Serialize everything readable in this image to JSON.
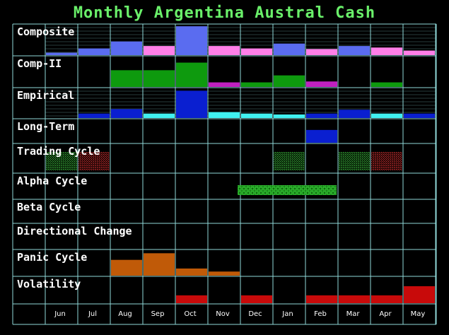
{
  "title": "Monthly Argentina Austral Cash",
  "colors": {
    "grid": "#8fd8d8",
    "composite": "#5a6cf0",
    "composite_alt": "#ff7fe8",
    "comp_ii": "#0e9a0e",
    "comp_ii_alt": "#c020c0",
    "empirical": "#0a1fd0",
    "empirical_alt": "#40f0f0",
    "long_term": "#0a1fd0",
    "trading_up": "#2e8a2e",
    "trading_down": "#a02020",
    "alpha": "#20c020",
    "panic": "#c05a08",
    "volatility": "#c80a0a"
  },
  "chart_data": {
    "type": "heatmap",
    "title": "Monthly Argentina Austral Cash",
    "months": [
      "Jun",
      "Jul",
      "Aug",
      "Sep",
      "Oct",
      "Nov",
      "Dec",
      "Jan",
      "Feb",
      "Mar",
      "Apr",
      "May"
    ],
    "rows": [
      {
        "name": "Composite",
        "kind": "bar",
        "scale": 1.0,
        "values": [
          0.08,
          0.22,
          0.45,
          0.3,
          0.95,
          0.3,
          0.22,
          0.38,
          0.2,
          0.3,
          0.25,
          0.15
        ],
        "color_keys": [
          "composite",
          "composite",
          "composite",
          "composite_alt",
          "composite",
          "composite_alt",
          "composite_alt",
          "composite",
          "composite_alt",
          "composite",
          "composite_alt",
          "composite_alt"
        ]
      },
      {
        "name": "Comp-II",
        "kind": "bar",
        "scale": 1.0,
        "values": [
          0,
          0,
          0.55,
          0.55,
          0.8,
          0.15,
          0.15,
          0.38,
          0.18,
          0,
          0.15,
          0
        ],
        "color_keys": [
          "comp_ii",
          "comp_ii",
          "comp_ii",
          "comp_ii",
          "comp_ii",
          "comp_ii_alt",
          "comp_ii",
          "comp_ii",
          "comp_ii_alt",
          "comp_ii",
          "comp_ii",
          "comp_ii"
        ]
      },
      {
        "name": "Empirical",
        "kind": "bar",
        "scale": 1.0,
        "values": [
          0,
          0.15,
          0.3,
          0.15,
          0.92,
          0.2,
          0.15,
          0.12,
          0.15,
          0.28,
          0.15,
          0.15
        ],
        "color_keys": [
          "empirical",
          "empirical",
          "empirical",
          "empirical_alt",
          "empirical",
          "empirical_alt",
          "empirical_alt",
          "empirical_alt",
          "empirical",
          "empirical",
          "empirical_alt",
          "empirical"
        ]
      },
      {
        "name": "Long-Term",
        "kind": "bar",
        "scale": 1.0,
        "values": [
          0,
          0,
          0,
          0,
          0,
          0,
          0,
          0,
          0.55,
          0,
          0,
          0
        ],
        "color_keys": [
          "long_term",
          "long_term",
          "long_term",
          "long_term",
          "long_term",
          "long_term",
          "long_term",
          "long_term",
          "long_term",
          "long_term",
          "long_term",
          "long_term"
        ]
      },
      {
        "name": "Trading Cycle",
        "kind": "pattern",
        "values": [
          1,
          1,
          0,
          0,
          0,
          0,
          0,
          1,
          0,
          1,
          1,
          0
        ],
        "color_keys": [
          "trading_up",
          "trading_down",
          "trading_up",
          "trading_up",
          "trading_up",
          "trading_up",
          "trading_up",
          "trading_up",
          "trading_up",
          "trading_up",
          "trading_down",
          "trading_up"
        ]
      },
      {
        "name": "Alpha Cycle",
        "kind": "pattern",
        "values": [
          0,
          0,
          0,
          0,
          0,
          0,
          1,
          1,
          1,
          0,
          0,
          0
        ],
        "color_keys": [
          "alpha",
          "alpha",
          "alpha",
          "alpha",
          "alpha",
          "alpha",
          "alpha",
          "alpha",
          "alpha",
          "alpha",
          "alpha",
          "alpha"
        ]
      },
      {
        "name": "Beta Cycle",
        "kind": "bar",
        "scale": 1.0,
        "values": [
          0,
          0,
          0,
          0,
          0,
          0,
          0,
          0,
          0,
          0,
          0,
          0
        ],
        "color_keys": [
          "composite",
          "composite",
          "composite",
          "composite",
          "composite",
          "composite",
          "composite",
          "composite",
          "composite",
          "composite",
          "composite",
          "composite"
        ]
      },
      {
        "name": "Directional Change",
        "kind": "bar",
        "scale": 1.0,
        "values": [
          0,
          0,
          0,
          0,
          0,
          0,
          0,
          0,
          0,
          0,
          0,
          0
        ],
        "color_keys": [
          "composite",
          "composite",
          "composite",
          "composite",
          "composite",
          "composite",
          "composite",
          "composite",
          "composite",
          "composite",
          "composite",
          "composite"
        ]
      },
      {
        "name": "Panic Cycle",
        "kind": "bar",
        "scale": 1.0,
        "values": [
          0,
          0,
          0.62,
          0.88,
          0.28,
          0.16,
          0,
          0,
          0,
          0,
          0,
          0
        ],
        "color_keys": [
          "panic",
          "panic",
          "panic",
          "panic",
          "panic",
          "panic",
          "panic",
          "panic",
          "panic",
          "panic",
          "panic",
          "panic"
        ]
      },
      {
        "name": "Volatility",
        "kind": "bar",
        "scale": 1.0,
        "values": [
          0,
          0,
          0,
          0,
          0.3,
          0,
          0.3,
          0,
          0.3,
          0.3,
          0.3,
          0.65
        ],
        "color_keys": [
          "volatility",
          "volatility",
          "volatility",
          "volatility",
          "volatility",
          "volatility",
          "volatility",
          "volatility",
          "volatility",
          "volatility",
          "volatility",
          "volatility"
        ]
      }
    ]
  }
}
